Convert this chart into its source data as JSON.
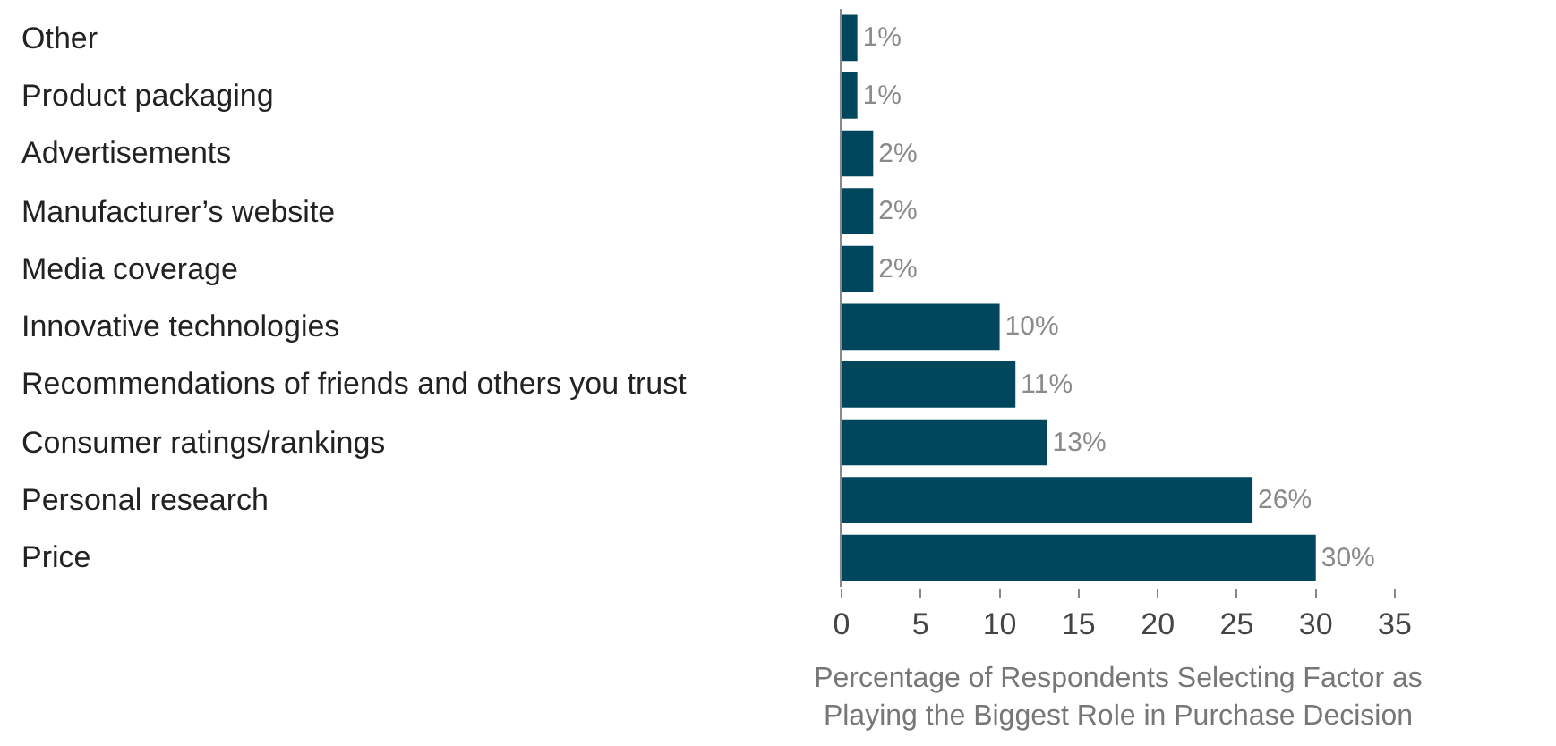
{
  "chart_data": {
    "type": "bar",
    "orientation": "horizontal",
    "categories": [
      "Other",
      "Product packaging",
      "Advertisements",
      "Manufacturer’s website",
      "Media coverage",
      "Innovative technologies",
      "Recommendations of friends and others you trust",
      "Consumer ratings/rankings",
      "Personal research",
      "Price"
    ],
    "values": [
      1,
      1,
      2,
      2,
      2,
      10,
      11,
      13,
      26,
      30
    ],
    "value_labels": [
      "1%",
      "1%",
      "2%",
      "2%",
      "2%",
      "10%",
      "11%",
      "13%",
      "26%",
      "30%"
    ],
    "color": "#00475e",
    "xlim": [
      0,
      35
    ],
    "xticks": [
      0,
      5,
      10,
      15,
      20,
      25,
      30,
      35
    ],
    "xlabel": "Percentage of Respondents Selecting Factor as\nPlaying the Biggest Role in Purchase Decision"
  }
}
